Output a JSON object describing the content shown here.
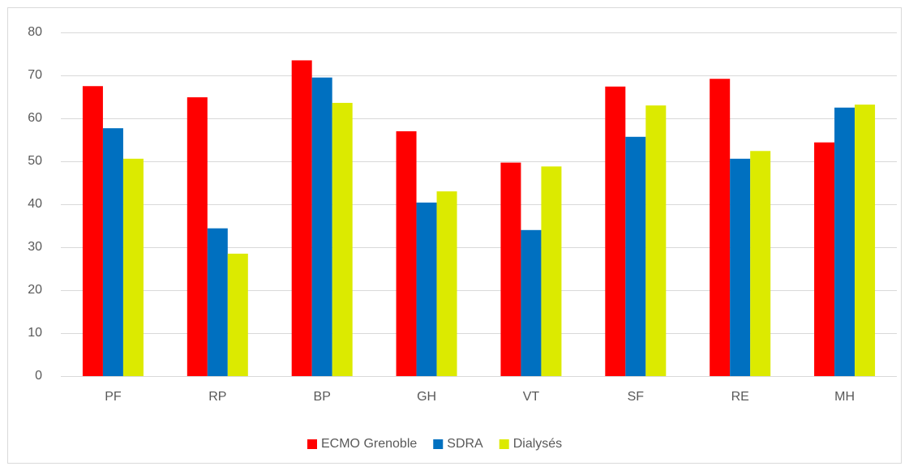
{
  "chart_data": {
    "type": "bar",
    "categories": [
      "PF",
      "RP",
      "BP",
      "GH",
      "VT",
      "SF",
      "RE",
      "MH"
    ],
    "series": [
      {
        "name": "ECMO Grenoble",
        "color": "#ff0000",
        "values": [
          67.5,
          64.9,
          73.5,
          57,
          49.7,
          67.4,
          69.2,
          54.4
        ]
      },
      {
        "name": "SDRA",
        "color": "#0070c0",
        "values": [
          57.7,
          34.4,
          69.5,
          40.4,
          34,
          55.7,
          50.6,
          62.5
        ]
      },
      {
        "name": "Dialysés",
        "color": "#dcea00",
        "values": [
          50.6,
          28.5,
          63.6,
          43,
          48.8,
          63,
          52.4,
          63.2
        ]
      }
    ],
    "ylim": [
      0,
      80
    ],
    "yticks": [
      0,
      10,
      20,
      30,
      40,
      50,
      60,
      70,
      80
    ],
    "grid": true,
    "legend": "bottom"
  }
}
